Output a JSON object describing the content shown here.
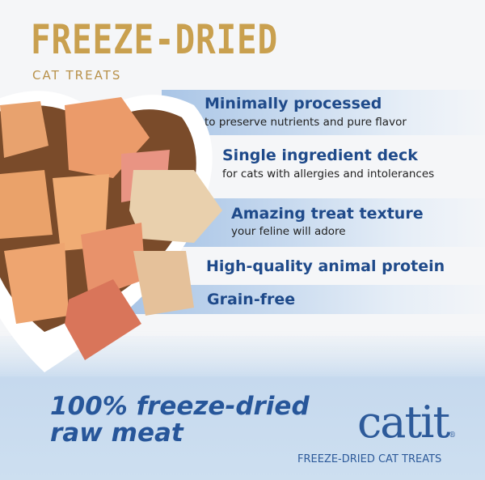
{
  "header": {
    "title": "FREEZE-DRIED",
    "subtitle": "CAT TREATS"
  },
  "features": [
    {
      "title": "Minimally processed",
      "subtitle": "to preserve nutrients and pure flavor"
    },
    {
      "title": "Single ingredient deck",
      "subtitle": "for cats with allergies and intolerances"
    },
    {
      "title": "Amazing treat texture",
      "subtitle": "your feline will adore"
    },
    {
      "title": "High-quality animal protein"
    },
    {
      "title": "Grain-free"
    }
  ],
  "tagline": {
    "line1": "100% freeze-dried",
    "line2": "raw meat"
  },
  "brand": {
    "logo": "catit",
    "registered": "®",
    "product": "FREEZE-DRIED CAT TREATS"
  },
  "colors": {
    "title_gold": "#c9a04f",
    "feature_blue": "#1f4a8a",
    "band_blue": "#a9c5e6"
  }
}
